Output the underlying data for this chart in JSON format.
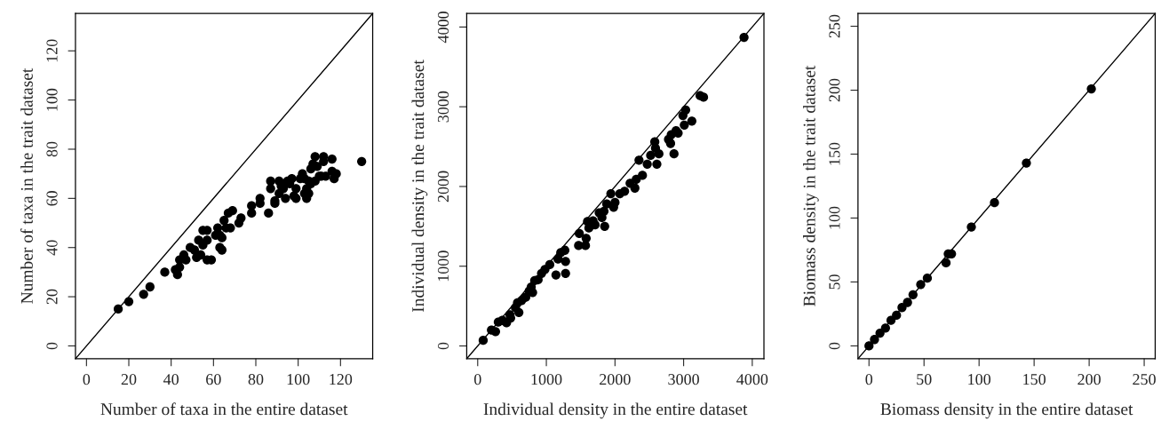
{
  "chart_data": [
    {
      "type": "scatter",
      "xlabel": "Number of taxa in the entire dataset",
      "ylabel": "Number of taxa in the trait dataset",
      "xlim": [
        -5.2,
        135.2
      ],
      "ylim": [
        -5.2,
        135.2
      ],
      "xticks": [
        0,
        20,
        40,
        60,
        80,
        100,
        120
      ],
      "yticks": [
        0,
        20,
        40,
        60,
        80,
        100,
        120
      ],
      "grid": false,
      "legend": false,
      "series": [
        {
          "color": "#000000",
          "marker": "circle",
          "x": [
            15,
            20,
            27,
            30,
            37,
            42,
            43,
            44,
            44,
            46,
            47,
            49,
            51,
            52,
            53,
            54,
            55,
            55,
            57,
            57,
            59,
            57,
            61,
            62,
            63,
            63,
            64,
            64,
            65,
            66,
            68,
            67,
            69,
            72,
            73,
            78,
            78,
            82,
            82,
            86,
            87,
            87,
            89,
            89,
            91,
            91,
            92,
            93,
            94,
            95,
            97,
            96,
            98,
            99,
            99,
            101,
            102,
            103,
            103,
            104,
            104,
            105,
            105,
            106,
            106,
            107,
            108,
            108,
            109,
            110,
            111,
            112,
            112,
            113,
            116,
            116,
            117,
            118,
            130
          ],
          "values": [
            15,
            18,
            21,
            24,
            30,
            31,
            29,
            32,
            35,
            37,
            35,
            40,
            39,
            36,
            43,
            37,
            41,
            47,
            47,
            35,
            35,
            43,
            45,
            48,
            45,
            40,
            39,
            44,
            51,
            48,
            48,
            54,
            55,
            50,
            52,
            57,
            54,
            60,
            58,
            54,
            67,
            64,
            58,
            59,
            67,
            62,
            65,
            64,
            60,
            67,
            68,
            66,
            61,
            60,
            64,
            68,
            70,
            68,
            62,
            64,
            60,
            62,
            67,
            66,
            72,
            74,
            77,
            67,
            73,
            69,
            69,
            77,
            75,
            69,
            71,
            76,
            68,
            70,
            75
          ]
        },
        {
          "type": "line",
          "color": "#000000",
          "x": [
            -5.2,
            135.2
          ],
          "values": [
            -5.2,
            135.2
          ]
        }
      ]
    },
    {
      "type": "scatter",
      "xlabel": "Individual density in the entire dataset",
      "ylabel": "Individual density in the trait dataset",
      "xlim": [
        -160,
        4170
      ],
      "ylim": [
        -160,
        4170
      ],
      "xticks": [
        0,
        1000,
        2000,
        3000,
        4000
      ],
      "yticks": [
        0,
        1000,
        2000,
        3000,
        4000
      ],
      "grid": false,
      "legend": false,
      "series": [
        {
          "color": "#000000",
          "marker": "circle",
          "x": [
            80,
            200,
            260,
            300,
            360,
            420,
            470,
            480,
            550,
            580,
            600,
            640,
            700,
            750,
            780,
            800,
            830,
            880,
            930,
            980,
            1050,
            1140,
            1170,
            1210,
            1270,
            1280,
            1280,
            1470,
            1480,
            1570,
            1580,
            1600,
            1620,
            1680,
            1710,
            1770,
            1810,
            1840,
            1850,
            1880,
            1940,
            1980,
            2000,
            2070,
            2140,
            2220,
            2290,
            2310,
            2350,
            2400,
            2470,
            2520,
            2580,
            2590,
            2610,
            2640,
            2780,
            2810,
            2820,
            2860,
            2890,
            2920,
            2990,
            3010,
            3030,
            3120,
            3240,
            3290,
            3880
          ],
          "values": [
            70,
            200,
            180,
            300,
            320,
            290,
            390,
            350,
            480,
            540,
            420,
            570,
            610,
            690,
            740,
            670,
            820,
            830,
            910,
            960,
            1020,
            890,
            1090,
            1170,
            1200,
            910,
            1060,
            1260,
            1410,
            1260,
            1350,
            1560,
            1480,
            1570,
            1520,
            1670,
            1610,
            1690,
            1500,
            1780,
            1910,
            1740,
            1800,
            1910,
            1940,
            2040,
            1980,
            2090,
            2330,
            2140,
            2280,
            2390,
            2560,
            2480,
            2280,
            2410,
            2590,
            2540,
            2650,
            2410,
            2700,
            2670,
            2890,
            2770,
            2960,
            2820,
            3140,
            3120,
            3870
          ]
        },
        {
          "type": "line",
          "color": "#000000",
          "x": [
            -160,
            4170
          ],
          "values": [
            -160,
            4170
          ]
        }
      ]
    },
    {
      "type": "scatter",
      "xlabel": "Biomass density in the entire dataset",
      "ylabel": "Biomass density in the trait dataset",
      "xlim": [
        -10,
        260
      ],
      "ylim": [
        -10,
        260
      ],
      "xticks": [
        0,
        50,
        100,
        150,
        200,
        250
      ],
      "yticks": [
        0,
        50,
        100,
        150,
        200,
        250
      ],
      "grid": false,
      "legend": false,
      "series": [
        {
          "color": "#000000",
          "marker": "circle",
          "x": [
            0,
            5,
            10,
            15,
            20,
            25,
            30,
            35,
            40,
            47,
            53,
            70,
            72,
            75,
            93,
            114,
            143,
            202
          ],
          "values": [
            0,
            5,
            10,
            14,
            20,
            24,
            30,
            34,
            40,
            48,
            53,
            65,
            72,
            72,
            93,
            112,
            143,
            201
          ]
        },
        {
          "type": "line",
          "color": "#000000",
          "x": [
            -10,
            260
          ],
          "values": [
            -10,
            260
          ]
        }
      ]
    }
  ]
}
